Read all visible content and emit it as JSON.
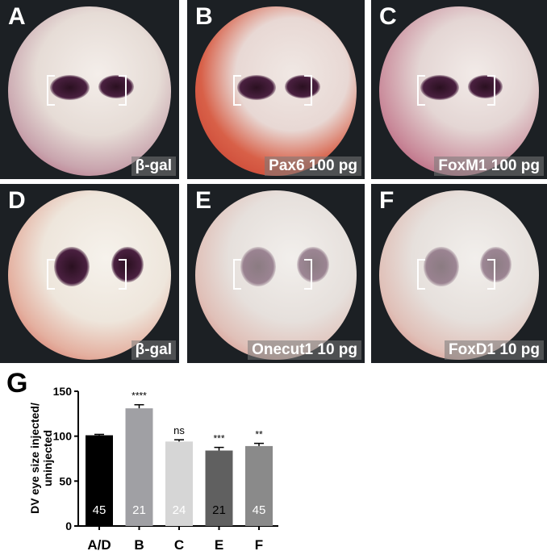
{
  "panels": [
    {
      "letter": "A",
      "caption": "β-gal"
    },
    {
      "letter": "B",
      "caption": "Pax6 100 pg"
    },
    {
      "letter": "C",
      "caption": "FoxM1 100 pg"
    },
    {
      "letter": "D",
      "caption": "β-gal"
    },
    {
      "letter": "E",
      "caption": "Onecut1 10 pg"
    },
    {
      "letter": "F",
      "caption": "FoxD1 10 pg"
    }
  ],
  "chart_data": {
    "type": "bar",
    "panel_letter": "G",
    "categories": [
      "A/D",
      "B",
      "C",
      "E",
      "F"
    ],
    "values": [
      101,
      131,
      94,
      84,
      89
    ],
    "errors": [
      1,
      4,
      2,
      3.5,
      3
    ],
    "n_labels": [
      "45",
      "21",
      "24",
      "21",
      "45"
    ],
    "significance": [
      "",
      "****",
      "ns",
      "***",
      "**"
    ],
    "bar_colors": [
      "#000000",
      "#a0a0a4",
      "#d6d6d6",
      "#606060",
      "#8a8a8a"
    ],
    "n_label_colors": [
      "#ffffff",
      "#ffffff",
      "#ffffff",
      "#000000",
      "#ffffff"
    ],
    "ylabel": "DV eye size injected/ uninjected",
    "ylim": [
      0,
      150
    ],
    "yticks": [
      0,
      50,
      100,
      150
    ],
    "grid": false
  }
}
